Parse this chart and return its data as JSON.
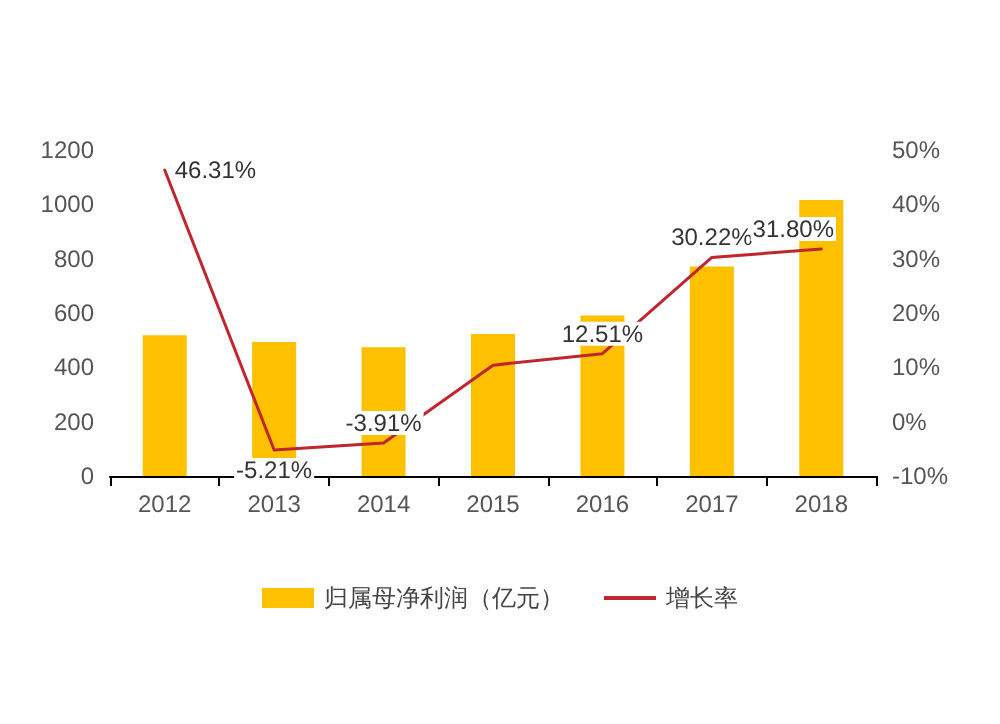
{
  "chart_data": {
    "type": "bar",
    "categories": [
      "2012",
      "2013",
      "2014",
      "2015",
      "2016",
      "2017",
      "2018"
    ],
    "series": [
      {
        "name": "归属母净利润（亿元）",
        "color": "#ffc000",
        "values": [
          518,
          493,
          474,
          523,
          591,
          771,
          1016
        ]
      },
      {
        "name": "增长率",
        "type": "line",
        "axis": "y2",
        "color": "#c0262d",
        "values": [
          46.31,
          -5.21,
          -3.91,
          10.4,
          12.51,
          30.22,
          31.8
        ],
        "value_labels": [
          "46.31%",
          "-5.21%",
          "-3.91%",
          null,
          "12.51%",
          "30.22%",
          "31.80%"
        ]
      }
    ],
    "ylim": [
      0,
      1200
    ],
    "yticks": [
      0,
      200,
      400,
      600,
      800,
      1000,
      1200
    ],
    "y2lim": [
      -10,
      50
    ],
    "y2ticks": [
      {
        "value": -10,
        "label": "-10%"
      },
      {
        "value": 0,
        "label": "0%"
      },
      {
        "value": 10,
        "label": "10%"
      },
      {
        "value": 20,
        "label": "20%"
      },
      {
        "value": 30,
        "label": "30%"
      },
      {
        "value": 40,
        "label": "40%"
      },
      {
        "value": 50,
        "label": "50%"
      }
    ],
    "grid": false,
    "legend": "bottom",
    "marker": "none"
  }
}
